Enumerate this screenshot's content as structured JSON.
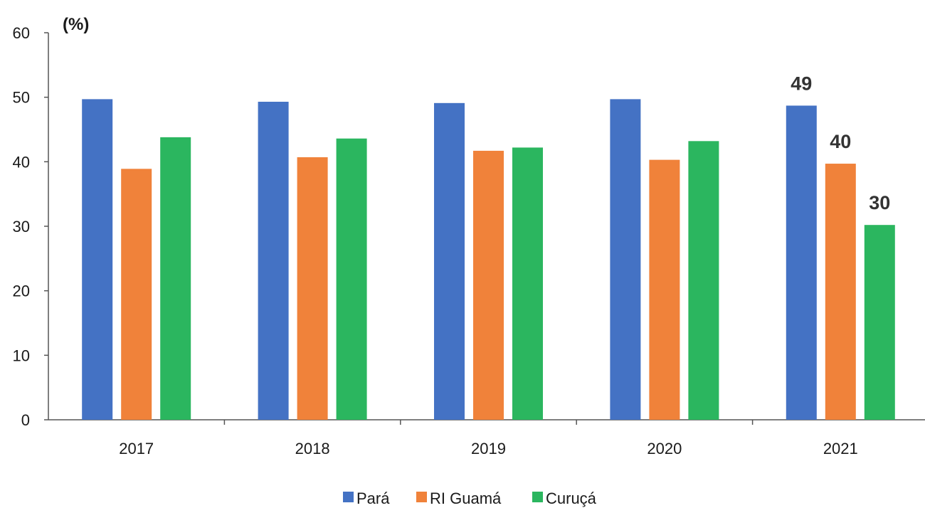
{
  "chart_data": {
    "type": "bar",
    "unit_label": "(%)",
    "categories": [
      "2017",
      "2018",
      "2019",
      "2020",
      "2021"
    ],
    "series": [
      {
        "name": "Pará",
        "color": "#4472C4",
        "values": [
          49.7,
          49.3,
          49.1,
          49.7,
          48.7
        ]
      },
      {
        "name": "RI Guamá",
        "color": "#F0823A",
        "values": [
          38.9,
          40.7,
          41.7,
          40.3,
          39.7
        ]
      },
      {
        "name": "Curuçá",
        "color": "#2BB65F",
        "values": [
          43.8,
          43.6,
          42.2,
          43.2,
          30.2
        ]
      }
    ],
    "data_labels": [
      {
        "series": 0,
        "category": 4,
        "text": "49"
      },
      {
        "series": 1,
        "category": 4,
        "text": "40"
      },
      {
        "series": 2,
        "category": 4,
        "text": "30"
      }
    ],
    "ylim": [
      0,
      60
    ],
    "yticks": [
      "0",
      "10",
      "20",
      "30",
      "40",
      "50",
      "60"
    ],
    "grid": false,
    "legend_position": "bottom"
  }
}
